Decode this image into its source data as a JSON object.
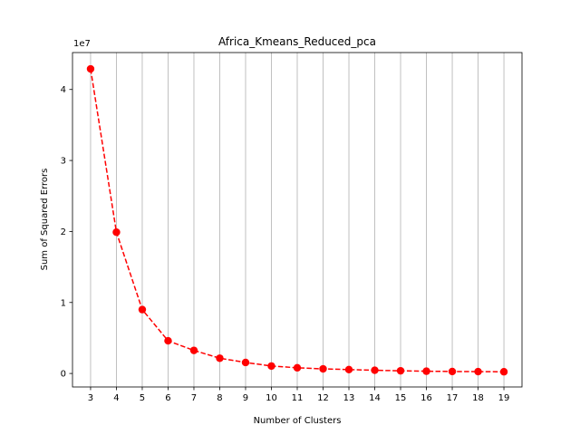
{
  "chart_data": {
    "type": "line",
    "title": "Africa_Kmeans_Reduced_pca",
    "xlabel": "Number of Clusters",
    "ylabel": "Sum of Squared Errors",
    "y_offset_label": "1e7",
    "x": [
      3,
      4,
      5,
      6,
      7,
      8,
      9,
      10,
      11,
      12,
      13,
      14,
      15,
      16,
      17,
      18,
      19
    ],
    "series": [
      {
        "values": [
          42900000,
          19900000,
          9000000,
          4600000,
          3250000,
          2150000,
          1550000,
          1050000,
          800000,
          650000,
          550000,
          450000,
          380000,
          320000,
          280000,
          260000,
          240000
        ],
        "color": "#ff0000",
        "line_style": "dashed",
        "marker": "circle"
      }
    ],
    "xlim": [
      2.3,
      19.7
    ],
    "ylim": [
      -1900000,
      45200000
    ],
    "x_ticks": [
      "3",
      "4",
      "5",
      "6",
      "7",
      "8",
      "9",
      "10",
      "11",
      "12",
      "13",
      "14",
      "15",
      "16",
      "17",
      "18",
      "19"
    ],
    "y_ticks": [
      {
        "value": 0,
        "label": "0"
      },
      {
        "value": 10000000,
        "label": "1"
      },
      {
        "value": 20000000,
        "label": "2"
      },
      {
        "value": 30000000,
        "label": "3"
      },
      {
        "value": 40000000,
        "label": "4"
      }
    ],
    "grid": "vertical",
    "grid_color": "#b0b0b0"
  }
}
